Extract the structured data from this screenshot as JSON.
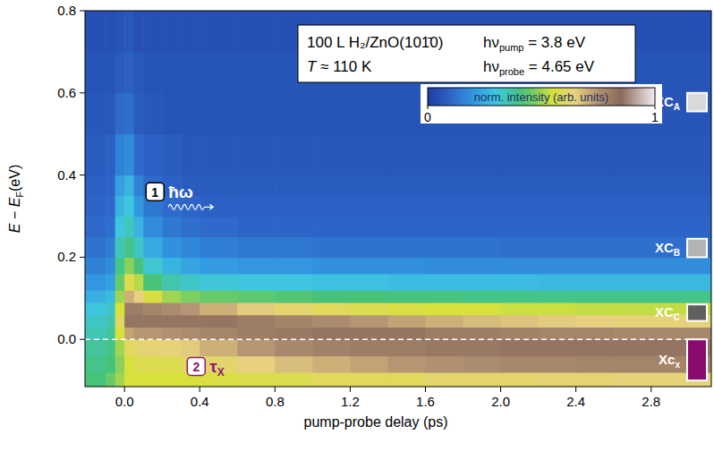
{
  "chart_data": {
    "type": "heatmap",
    "x_label": "pump-probe delay (ps)",
    "y_label": {
      "text": "E − E",
      "sub": "F",
      "unit": "(eV)"
    },
    "xlim": [
      -0.21,
      3.12
    ],
    "ylim": [
      -0.115,
      0.8
    ],
    "xticks": [
      {
        "value": 0,
        "label": "0.0"
      },
      0.4,
      0.8,
      1.2,
      1.6,
      {
        "value": 2,
        "label": "2.0"
      },
      2.4,
      2.8
    ],
    "yticks": [
      {
        "value": 0,
        "label": "0.0"
      },
      0.2,
      0.4,
      0.6,
      0.8
    ],
    "x_edges": [
      -0.21,
      -0.1,
      -0.05,
      0,
      0.05,
      0.1,
      0.2,
      0.3,
      0.4,
      0.6,
      0.8,
      1.0,
      1.2,
      1.4,
      1.6,
      1.8,
      2.0,
      2.2,
      2.4,
      2.6,
      3.12
    ],
    "y_edges": [
      -0.115,
      -0.08,
      -0.04,
      0,
      0.03,
      0.06,
      0.09,
      0.12,
      0.16,
      0.2,
      0.25,
      0.3,
      0.35,
      0.4,
      0.5,
      0.6,
      0.7,
      0.8
    ],
    "z": [
      [
        0.42,
        0.45,
        0.5,
        0.55,
        0.55,
        0.55,
        0.55,
        0.55,
        0.56,
        0.57,
        0.58,
        0.6,
        0.6,
        0.6,
        0.62,
        0.62,
        0.62,
        0.63,
        0.63,
        0.64
      ],
      [
        0.4,
        0.42,
        0.48,
        0.55,
        0.58,
        0.58,
        0.58,
        0.6,
        0.62,
        0.65,
        0.68,
        0.7,
        0.72,
        0.74,
        0.75,
        0.76,
        0.77,
        0.77,
        0.78,
        0.78
      ],
      [
        0.38,
        0.4,
        0.5,
        0.6,
        0.62,
        0.63,
        0.64,
        0.66,
        0.7,
        0.74,
        0.77,
        0.79,
        0.8,
        0.8,
        0.81,
        0.81,
        0.82,
        0.82,
        0.82,
        0.82
      ],
      [
        0.35,
        0.38,
        0.55,
        0.72,
        0.74,
        0.74,
        0.75,
        0.76,
        0.78,
        0.8,
        0.81,
        0.82,
        0.82,
        0.82,
        0.8,
        0.8,
        0.79,
        0.78,
        0.78,
        0.77
      ],
      [
        0.33,
        0.36,
        0.6,
        0.82,
        0.82,
        0.82,
        0.82,
        0.82,
        0.82,
        0.8,
        0.78,
        0.76,
        0.74,
        0.72,
        0.7,
        0.68,
        0.67,
        0.66,
        0.65,
        0.64
      ],
      [
        0.3,
        0.33,
        0.55,
        0.8,
        0.8,
        0.78,
        0.76,
        0.74,
        0.7,
        0.66,
        0.62,
        0.6,
        0.58,
        0.56,
        0.55,
        0.55,
        0.54,
        0.54,
        0.53,
        0.53
      ],
      [
        0.25,
        0.28,
        0.5,
        0.7,
        0.65,
        0.56,
        0.5,
        0.47,
        0.45,
        0.44,
        0.43,
        0.42,
        0.42,
        0.41,
        0.41,
        0.4,
        0.4,
        0.4,
        0.4,
        0.4
      ],
      [
        0.2,
        0.22,
        0.45,
        0.58,
        0.52,
        0.42,
        0.36,
        0.33,
        0.31,
        0.3,
        0.3,
        0.29,
        0.29,
        0.28,
        0.28,
        0.28,
        0.28,
        0.27,
        0.27,
        0.27
      ],
      [
        0.16,
        0.18,
        0.4,
        0.48,
        0.42,
        0.32,
        0.26,
        0.23,
        0.21,
        0.2,
        0.2,
        0.19,
        0.19,
        0.19,
        0.18,
        0.18,
        0.18,
        0.18,
        0.18,
        0.18
      ],
      [
        0.13,
        0.15,
        0.35,
        0.4,
        0.33,
        0.24,
        0.19,
        0.17,
        0.15,
        0.14,
        0.14,
        0.13,
        0.13,
        0.13,
        0.13,
        0.13,
        0.12,
        0.12,
        0.12,
        0.12
      ],
      [
        0.11,
        0.12,
        0.3,
        0.34,
        0.26,
        0.18,
        0.14,
        0.12,
        0.11,
        0.1,
        0.1,
        0.1,
        0.1,
        0.1,
        0.1,
        0.1,
        0.1,
        0.1,
        0.1,
        0.1
      ],
      [
        0.1,
        0.11,
        0.26,
        0.3,
        0.2,
        0.14,
        0.11,
        0.1,
        0.09,
        0.09,
        0.09,
        0.09,
        0.09,
        0.09,
        0.09,
        0.09,
        0.09,
        0.09,
        0.09,
        0.09
      ],
      [
        0.09,
        0.1,
        0.22,
        0.26,
        0.16,
        0.11,
        0.09,
        0.08,
        0.08,
        0.08,
        0.08,
        0.08,
        0.08,
        0.08,
        0.08,
        0.08,
        0.08,
        0.08,
        0.08,
        0.08
      ],
      [
        0.08,
        0.09,
        0.16,
        0.18,
        0.11,
        0.09,
        0.08,
        0.07,
        0.07,
        0.07,
        0.07,
        0.07,
        0.07,
        0.07,
        0.07,
        0.07,
        0.07,
        0.07,
        0.07,
        0.07
      ],
      [
        0.07,
        0.07,
        0.11,
        0.12,
        0.08,
        0.07,
        0.06,
        0.06,
        0.06,
        0.06,
        0.06,
        0.06,
        0.06,
        0.06,
        0.06,
        0.06,
        0.06,
        0.06,
        0.06,
        0.06
      ],
      [
        0.06,
        0.06,
        0.08,
        0.09,
        0.07,
        0.06,
        0.06,
        0.06,
        0.06,
        0.06,
        0.06,
        0.06,
        0.06,
        0.06,
        0.06,
        0.06,
        0.06,
        0.06,
        0.06,
        0.06
      ],
      [
        0.05,
        0.05,
        0.06,
        0.07,
        0.05,
        0.05,
        0.05,
        0.05,
        0.05,
        0.05,
        0.05,
        0.05,
        0.05,
        0.05,
        0.05,
        0.05,
        0.05,
        0.05,
        0.05,
        0.05
      ]
    ],
    "colorbar": {
      "label": "norm. intensity (arb. units)",
      "range": [
        0,
        1
      ],
      "ticks": [
        0,
        1
      ]
    },
    "fermi_level": 0,
    "info": {
      "sample": "100 L H₂/ZnO(101̄0)",
      "temperature": {
        "symbol": "T",
        "text": " ≈ 110 K"
      },
      "photons": [
        {
          "base": "hν",
          "sub": "pump",
          "text": " = 3.8 eV"
        },
        {
          "base": "hν",
          "sub": "probe",
          "text": " = 4.65 eV"
        }
      ]
    },
    "levels": [
      {
        "label": "XC",
        "sub": "A",
        "ymin": 0.555,
        "ymax": 0.6,
        "color": "#d9d9d9"
      },
      {
        "label": "XC",
        "sub": "B",
        "ymin": 0.2,
        "ymax": 0.245,
        "color": "#b3b3b3"
      },
      {
        "label": "XC",
        "sub": "C",
        "ymin": 0.045,
        "ymax": 0.085,
        "color": "#606060"
      },
      {
        "label": "Xc",
        "sub": "x",
        "ymin": -0.1,
        "ymax": 0.0,
        "color": "#8b0a6e"
      }
    ],
    "annotations": [
      {
        "number": "1",
        "text": "ħω",
        "x": 0.167,
        "y": 0.357,
        "color": "#000000"
      },
      {
        "number": "2",
        "text": "τ",
        "sub": "X",
        "x": 0.386,
        "y": -0.068,
        "color": "#8b1a6e"
      }
    ]
  }
}
